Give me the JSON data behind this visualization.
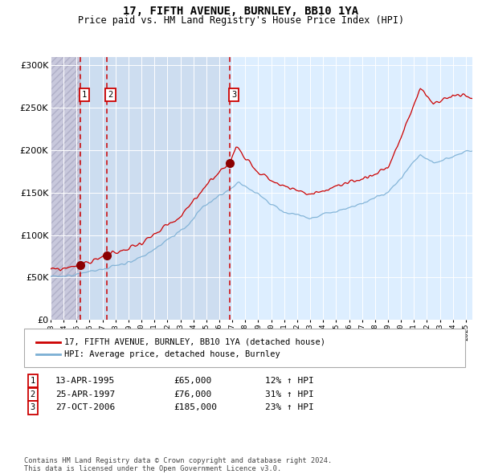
{
  "title": "17, FIFTH AVENUE, BURNLEY, BB10 1YA",
  "subtitle": "Price paid vs. HM Land Registry's House Price Index (HPI)",
  "sale_dates": [
    1995.28,
    1997.32,
    2006.82
  ],
  "sale_prices": [
    65000,
    76000,
    185000
  ],
  "sale_labels": [
    "1",
    "2",
    "3"
  ],
  "sale_info": [
    {
      "num": "1",
      "date": "13-APR-1995",
      "price": "£65,000",
      "change": "12% ↑ HPI"
    },
    {
      "num": "2",
      "date": "25-APR-1997",
      "price": "£76,000",
      "change": "31% ↑ HPI"
    },
    {
      "num": "3",
      "date": "27-OCT-2006",
      "price": "£185,000",
      "change": "23% ↑ HPI"
    }
  ],
  "legend_entries": [
    "17, FIFTH AVENUE, BURNLEY, BB10 1YA (detached house)",
    "HPI: Average price, detached house, Burnley"
  ],
  "hpi_color": "#7bafd4",
  "price_color": "#cc0000",
  "sale_dot_color": "#8b0000",
  "dashed_line_color": "#cc0000",
  "background_plot": "#ddeeff",
  "background_hatch_color": "#c8c8dc",
  "grid_color": "#ffffff",
  "ylim": [
    0,
    310000
  ],
  "yticks": [
    0,
    50000,
    100000,
    150000,
    200000,
    250000,
    300000
  ],
  "xmin": 1993.0,
  "xmax": 2025.5,
  "footer": "Contains HM Land Registry data © Crown copyright and database right 2024.\nThis data is licensed under the Open Government Licence v3.0."
}
